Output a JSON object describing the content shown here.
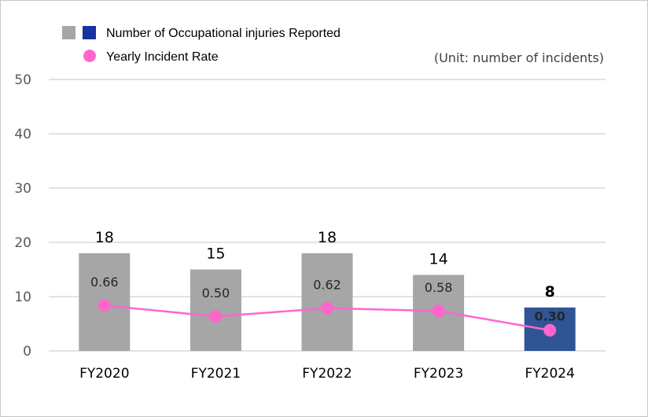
{
  "chart_data": {
    "type": "bar",
    "categories": [
      "FY2020",
      "FY2021",
      "FY2022",
      "FY2023",
      "FY2024"
    ],
    "series": [
      {
        "name": "Number of Occupational injuries Reported",
        "values": [
          18,
          15,
          18,
          14,
          8
        ],
        "labels": [
          "18",
          "15",
          "18",
          "14",
          "8"
        ],
        "colors": [
          "#A6A6A6",
          "#A6A6A6",
          "#A6A6A6",
          "#A6A6A6",
          "#2F5597"
        ]
      },
      {
        "name": "Yearly Incident Rate",
        "type": "line",
        "values": [
          0.66,
          0.5,
          0.62,
          0.58,
          0.3
        ],
        "labels": [
          "0.66",
          "0.50",
          "0.62",
          "0.58",
          "0.30"
        ],
        "color": "#FF66CC"
      }
    ],
    "legend_swatch_colors": [
      "#A6A6A6",
      "#1733A0"
    ],
    "unit": "(Unit: number of incidents)",
    "ylim": [
      0,
      50
    ],
    "y2lim": [
      0,
      3.94
    ],
    "yticks": [
      "0",
      "10",
      "20",
      "30",
      "40",
      "50"
    ],
    "grid": true,
    "legend": "top-left"
  }
}
